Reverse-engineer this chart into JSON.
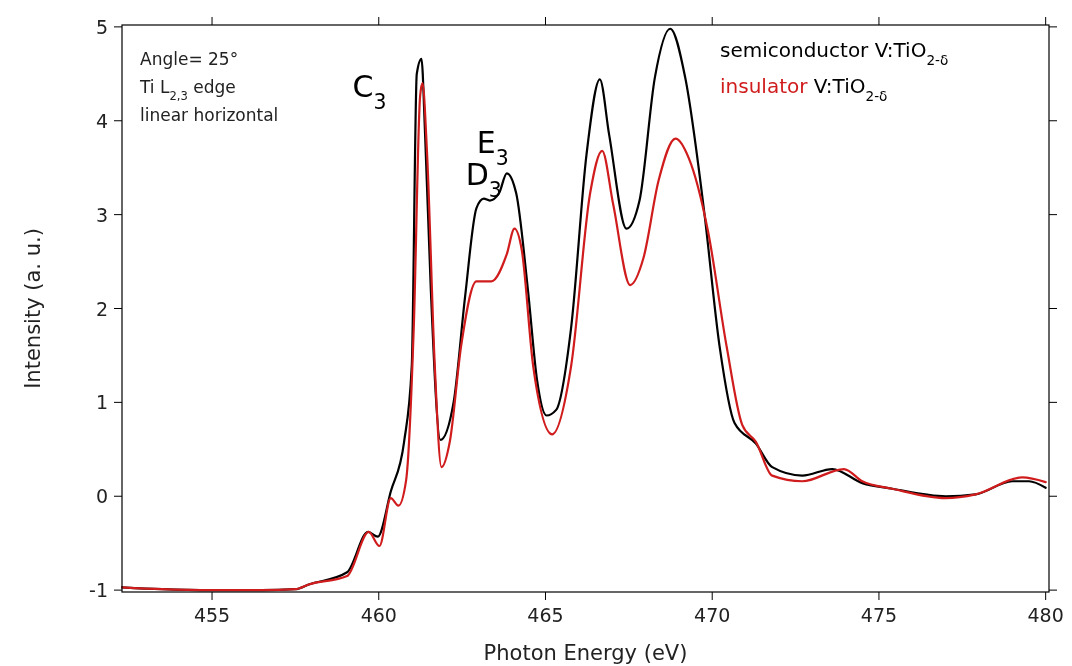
{
  "chart_data": {
    "type": "line",
    "xlabel": "Photon Energy (eV)",
    "ylabel": "Intensity (a. u.)",
    "xlim": [
      452.3,
      480.1
    ],
    "xticks": [
      455,
      460,
      465,
      470,
      475,
      480
    ],
    "ylim": [
      -1.02,
      5.02
    ],
    "yticks": [
      -1,
      0,
      1,
      2,
      3,
      4,
      5
    ],
    "grid": false,
    "legend": "top right",
    "marker": "none",
    "line_style": "solid",
    "annotations": [
      "Angle= 25°",
      "Ti L$_{2,3}$ edge",
      "linear horizontal",
      {
        "text": "C$_{3}$",
        "x": 461.28,
        "y": 4.66
      },
      {
        "text": "D$_{3}$",
        "x": 463.15,
        "y": 3.17
      },
      {
        "text": "E$_{3}$",
        "x": 463.84,
        "y": 3.44
      }
    ],
    "series": [
      {
        "name": "semiconductor V:TiO$_{2-δ}$",
        "color": "#000000",
        "x": [
          452.3,
          453.5,
          455,
          456.5,
          457.5,
          457.9,
          459.05,
          459.68,
          459.97,
          460.36,
          460.76,
          460.99,
          461.14,
          461.28,
          461.39,
          461.56,
          461.85,
          462.24,
          462.59,
          462.93,
          463.15,
          463.33,
          463.61,
          463.84,
          464.12,
          464.47,
          464.75,
          465.03,
          465.32,
          465.77,
          466.23,
          466.63,
          466.91,
          467.43,
          467.82,
          468.28,
          468.74,
          469.19,
          469.76,
          470.22,
          470.67,
          471.31,
          471.8,
          472.7,
          473.6,
          474.5,
          475.4,
          477.0,
          477.9,
          479.0,
          479.5,
          480.0
        ],
        "values": [
          -0.97,
          -0.99,
          -1.0,
          -1.0,
          -0.99,
          -0.94,
          -0.81,
          -0.38,
          -0.43,
          0.05,
          0.58,
          1.39,
          4.5,
          4.66,
          3.85,
          2.21,
          0.6,
          0.99,
          2.13,
          3.07,
          3.17,
          3.15,
          3.23,
          3.44,
          3.23,
          2.21,
          1.23,
          0.86,
          0.92,
          1.8,
          3.64,
          4.44,
          3.85,
          2.85,
          3.15,
          4.46,
          4.98,
          4.46,
          3.03,
          1.6,
          0.78,
          0.56,
          0.31,
          0.22,
          0.29,
          0.14,
          0.08,
          0.0,
          0.02,
          0.16,
          0.16,
          0.09
        ]
      },
      {
        "name": "insulator V:TiO$_{2-δ}$",
        "color": "#d01c1c",
        "x": [
          452.3,
          453.5,
          455,
          456.5,
          457.5,
          457.9,
          459.05,
          459.7,
          460.02,
          460.36,
          460.59,
          460.82,
          461.05,
          461.24,
          461.31,
          461.45,
          461.68,
          461.88,
          462.13,
          462.47,
          462.93,
          463.38,
          463.84,
          464.07,
          464.29,
          464.63,
          465.2,
          465.77,
          466.34,
          466.7,
          467.03,
          467.54,
          467.94,
          468.39,
          468.9,
          469.3,
          469.87,
          470.43,
          470.9,
          471.31,
          471.8,
          472.7,
          473.95,
          474.5,
          475.4,
          477.0,
          477.9,
          479.3,
          480.0
        ],
        "values": [
          -0.97,
          -0.99,
          -1.0,
          -1.0,
          -0.99,
          -0.94,
          -0.85,
          -0.38,
          -0.53,
          -0.02,
          -0.1,
          0.17,
          1.8,
          4.26,
          4.4,
          3.64,
          1.39,
          0.31,
          0.58,
          1.6,
          2.29,
          2.29,
          2.58,
          2.85,
          2.62,
          1.39,
          0.66,
          1.39,
          3.23,
          3.68,
          3.11,
          2.25,
          2.54,
          3.36,
          3.81,
          3.6,
          2.83,
          1.6,
          0.76,
          0.58,
          0.22,
          0.16,
          0.29,
          0.16,
          0.08,
          -0.02,
          0.02,
          0.2,
          0.15
        ]
      }
    ]
  }
}
